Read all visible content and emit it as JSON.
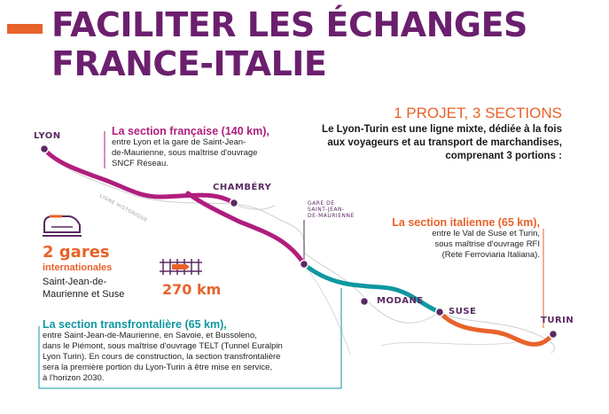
{
  "header": {
    "title_line1": "FACILITER LES ÉCHANGES",
    "title_line2": "FRANCE-ITALIE"
  },
  "intro": {
    "heading": "1 PROJET, 3 SECTIONS",
    "text_line1": "Le Lyon-Turin est une ligne mixte, dédiée à la fois",
    "text_line2": "aux voyageurs et au transport de marchandises,",
    "text_line3": "comprenant 3 portions :"
  },
  "sections": {
    "francaise": {
      "title": "La section française (140 km),",
      "line1": "entre Lyon et la gare de Saint-Jean-",
      "line2": "de-Maurienne, sous maîtrise d'ouvrage",
      "line3": "SNCF Réseau."
    },
    "italienne": {
      "title": "La section italienne (65 km),",
      "line1": "entre le Val de Suse et Turin,",
      "line2": "sous maîtrise d'ouvrage RFI",
      "line3": "(Rete Ferroviaria Italiana)."
    },
    "transfrontaliere": {
      "title": "La section transfrontalière (65 km),",
      "line1": "entre Saint-Jean-de-Maurienne, en Savoie, et Bussoleno,",
      "line2": "dans le Piémont, sous maîtrise d'ouvrage TELT (Tunnel Euralpin",
      "line3": "Lyon Turin). En cours de construction, la section transfrontalière",
      "line4": "sera la première portion du Lyon-Turin à être mise en service,",
      "line5": "à l'horizon 2030."
    }
  },
  "cities": {
    "lyon": "LYON",
    "chambery": "CHAMBÉRY",
    "modane": "MODANE",
    "suse": "SUSE",
    "turin": "TURIN",
    "gare_line1": "GARE DE",
    "gare_line2": "SAINT-JEAN-",
    "gare_line3": "DE-MAURIENNE",
    "ligne_historique": "LIGNE HISTORIQUE"
  },
  "stats": {
    "gares_count": "2 gares",
    "gares_type": "internationales",
    "gares_names_line1": "Saint-Jean-de-",
    "gares_names_line2": "Maurienne et Suse",
    "distance": "270 km"
  },
  "colors": {
    "purple_title": "#6b1f6e",
    "orange": "#e8622a",
    "magenta": "#b01e7d",
    "teal": "#0f97a0",
    "node": "#5a2a63",
    "historic_line": "#c9c9c9"
  },
  "icons": {
    "train": "train-icon",
    "tracks": "railway-track-icon"
  }
}
